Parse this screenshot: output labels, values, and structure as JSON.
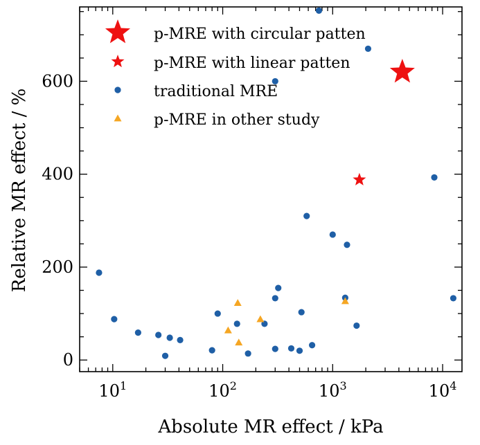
{
  "chart_data": {
    "type": "scatter",
    "title": "",
    "xlabel": "Absolute MR effect / kPa",
    "ylabel": "Relative MR effect / %",
    "x_scale": "log",
    "xlim": [
      5,
      15000
    ],
    "ylim": [
      -25,
      760
    ],
    "x_ticks": [
      10,
      100,
      1000,
      10000
    ],
    "x_tick_labels": [
      {
        "base": "10",
        "exp": "1"
      },
      {
        "base": "10",
        "exp": "2"
      },
      {
        "base": "10",
        "exp": "3"
      },
      {
        "base": "10",
        "exp": "4"
      }
    ],
    "y_ticks": [
      0,
      200,
      400,
      600
    ],
    "y_tick_labels": [
      "0",
      "200",
      "400",
      "600"
    ],
    "grid": false,
    "legend_placement": "top-left",
    "series": [
      {
        "name": "p-MRE with circular patten",
        "marker": "star-large",
        "color": "#ee1111",
        "points": [
          [
            4300,
            620
          ]
        ]
      },
      {
        "name": "p-MRE with linear patten",
        "marker": "star-small",
        "color": "#ee1111",
        "points": [
          [
            1750,
            388
          ]
        ]
      },
      {
        "name": "traditional MRE",
        "marker": "circle",
        "color": "#1f5fa6",
        "points": [
          [
            7.5,
            188
          ],
          [
            10.3,
            88
          ],
          [
            17,
            59
          ],
          [
            26,
            54
          ],
          [
            30,
            9
          ],
          [
            33,
            48
          ],
          [
            41,
            43
          ],
          [
            80,
            21
          ],
          [
            90,
            100
          ],
          [
            135,
            78
          ],
          [
            170,
            14
          ],
          [
            240,
            78
          ],
          [
            300,
            24
          ],
          [
            300,
            133
          ],
          [
            320,
            155
          ],
          [
            300,
            600
          ],
          [
            420,
            25
          ],
          [
            520,
            103
          ],
          [
            500,
            20
          ],
          [
            580,
            310
          ],
          [
            650,
            32
          ],
          [
            750,
            752
          ],
          [
            1000,
            270
          ],
          [
            1350,
            248
          ],
          [
            1300,
            134
          ],
          [
            1650,
            74
          ],
          [
            2100,
            670
          ],
          [
            8400,
            393
          ],
          [
            12500,
            133
          ]
        ]
      },
      {
        "name": "p-MRE in other study",
        "marker": "triangle",
        "color": "#f5a623",
        "points": [
          [
            112,
            64
          ],
          [
            137,
            123
          ],
          [
            140,
            38
          ],
          [
            220,
            88
          ],
          [
            1300,
            127
          ]
        ]
      }
    ]
  }
}
